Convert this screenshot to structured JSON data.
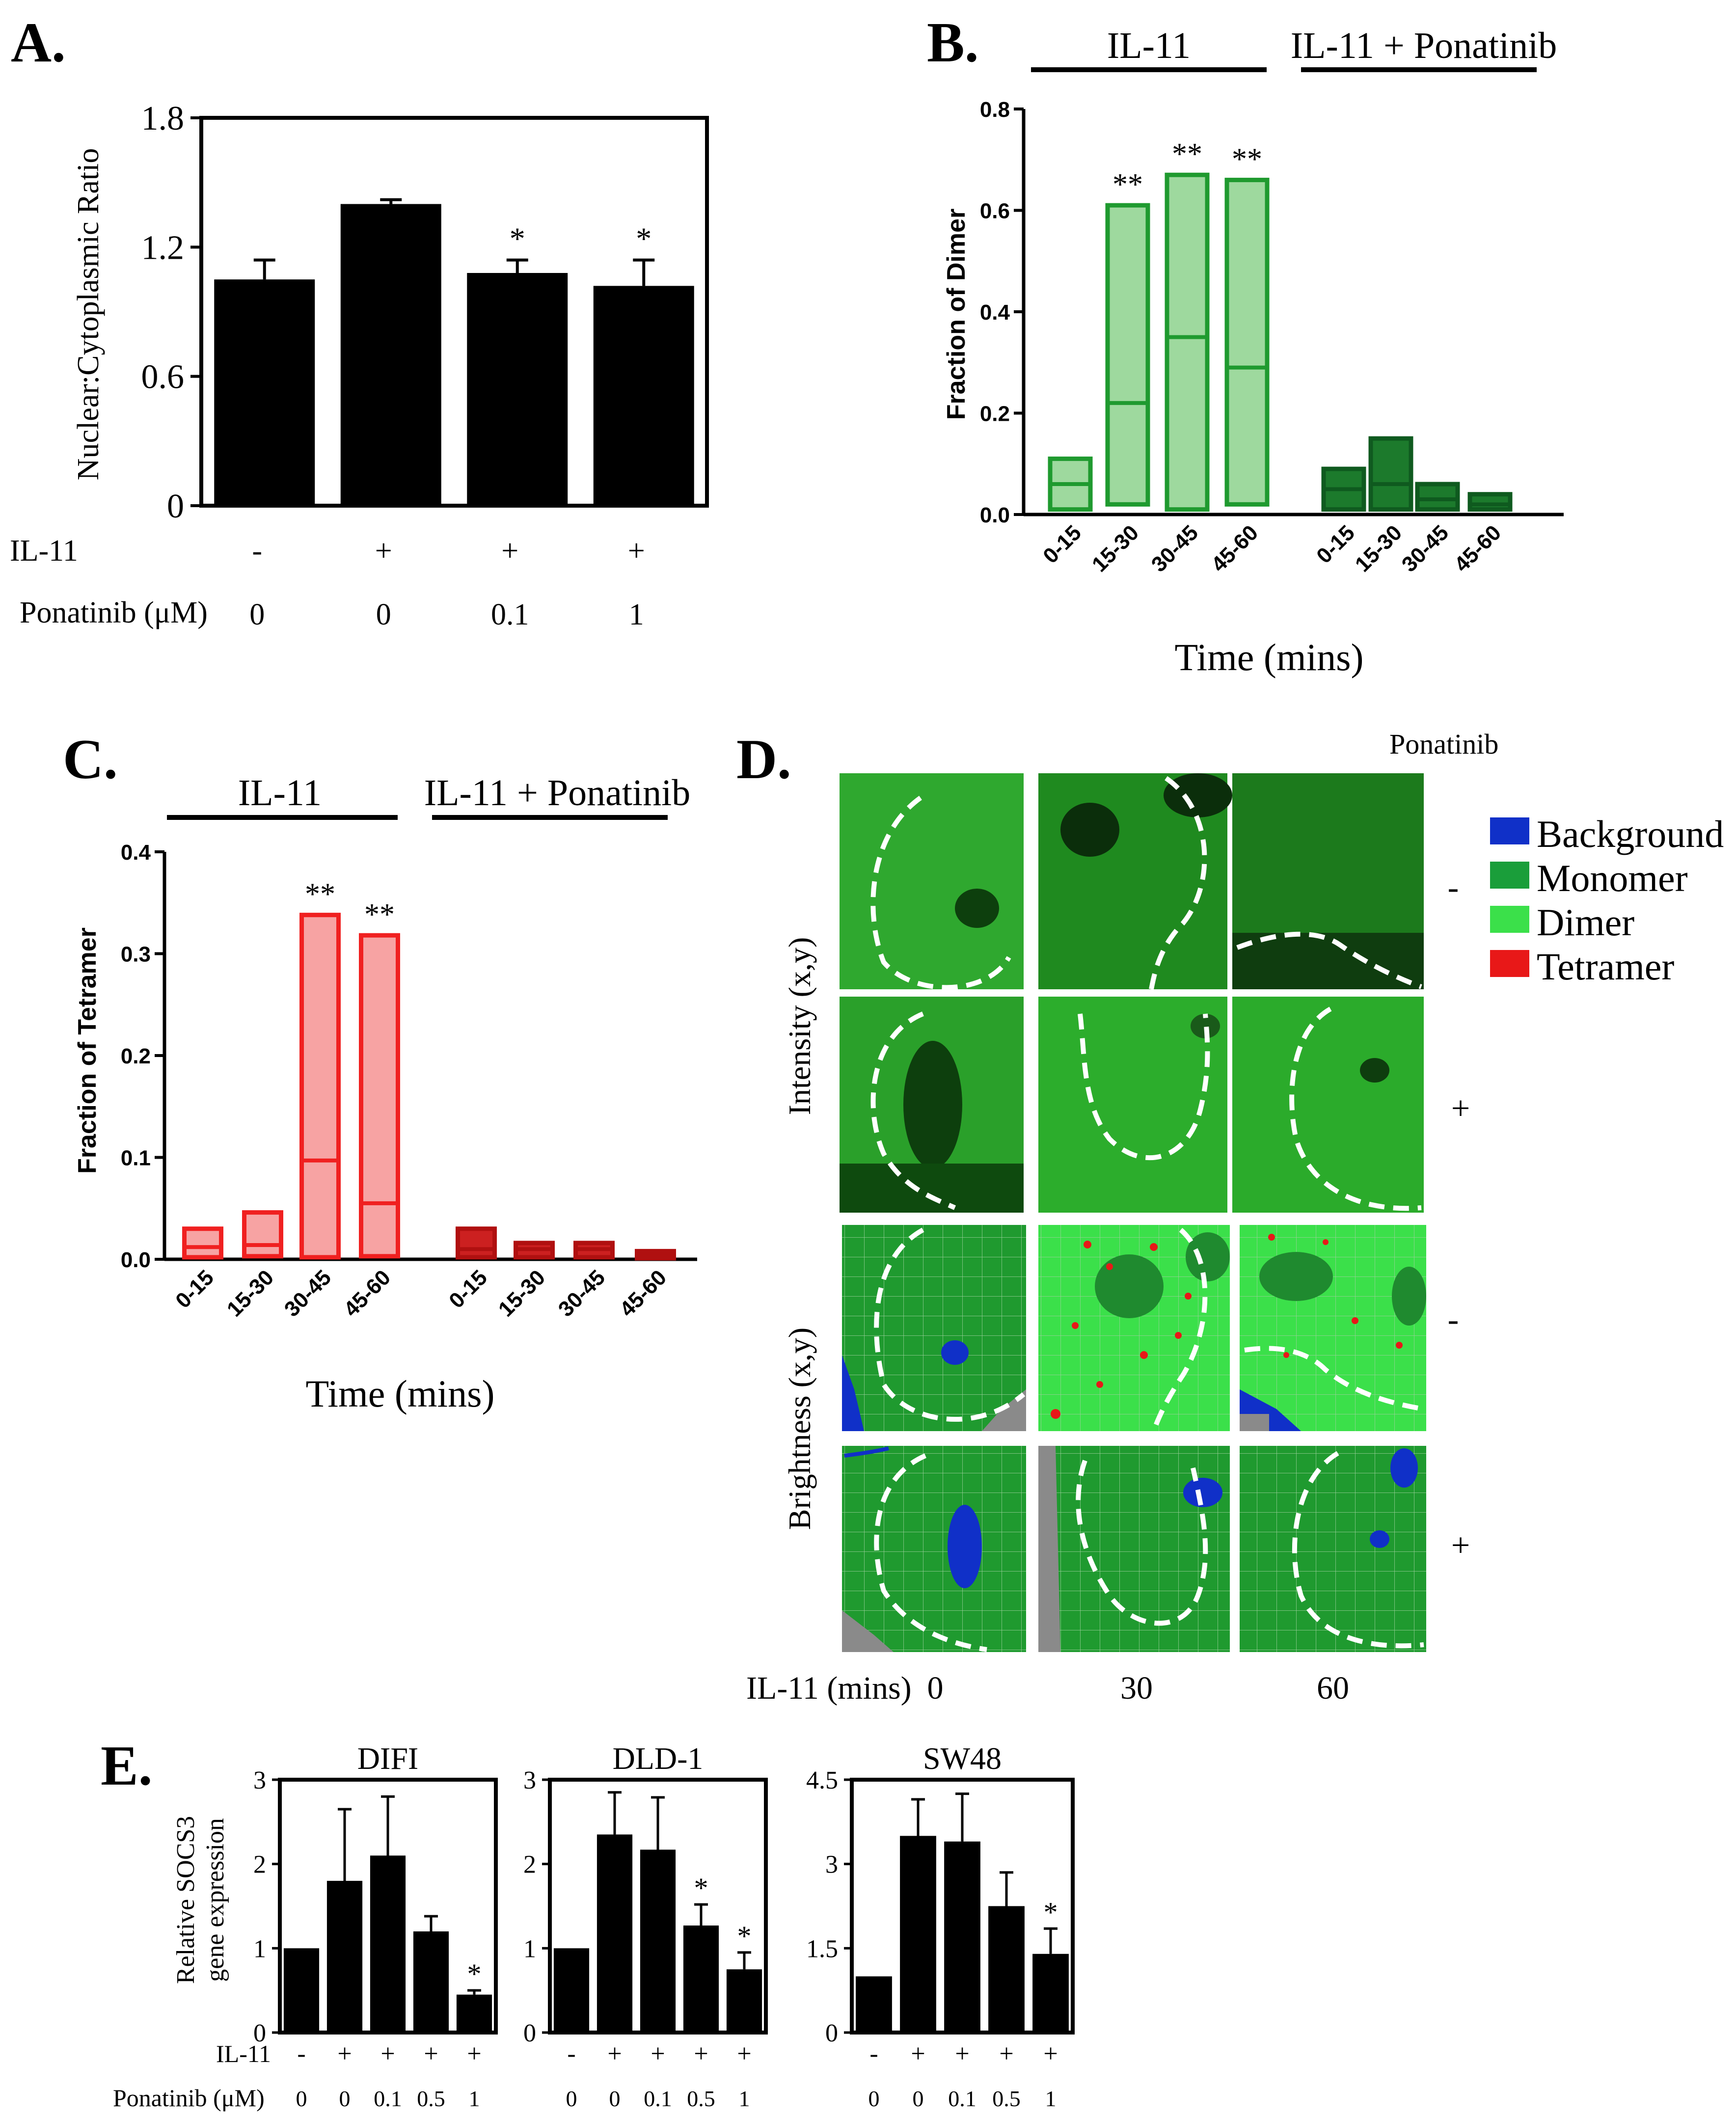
{
  "panel_a": {
    "label": "A.",
    "chart_data": {
      "type": "bar",
      "ylabel": "Nuclear:Cytoplasmic Ratio",
      "ylim": [
        0,
        1.8
      ],
      "yticks": [
        "0",
        "0.6",
        "1.2",
        "1.8"
      ],
      "values": [
        1.05,
        1.4,
        1.08,
        1.02
      ],
      "errors": [
        0.09,
        0.02,
        0.06,
        0.12
      ],
      "significance": [
        "",
        "",
        "*",
        "*"
      ],
      "row_labels": [
        "IL-11",
        "Ponatinib (μM)"
      ],
      "il11": [
        "-",
        "+",
        "+",
        "+"
      ],
      "ponatinib": [
        "0",
        "0",
        "0.1",
        "1"
      ]
    }
  },
  "panel_b": {
    "label": "B.",
    "chart_data": {
      "type": "bar",
      "ylabel": "Fraction of Dimer",
      "xlabel": "Time (mins)",
      "ylim": [
        0,
        0.8
      ],
      "yticks": [
        "0.0",
        "0.2",
        "0.4",
        "0.6",
        "0.8"
      ],
      "group_titles": [
        "IL-11",
        "IL-11 + Ponatinib"
      ],
      "categories": [
        "0-15",
        "15-30",
        "30-45",
        "45-60",
        "0-15",
        "15-30",
        "30-45",
        "45-60"
      ],
      "lows": [
        0.01,
        0.02,
        0.01,
        0.02,
        0.01,
        0.01,
        0.01,
        0.01
      ],
      "highs": [
        0.11,
        0.61,
        0.67,
        0.66,
        0.09,
        0.15,
        0.06,
        0.04
      ],
      "medians": [
        0.06,
        0.22,
        0.35,
        0.29,
        0.05,
        0.06,
        0.03,
        0.02
      ],
      "significance": [
        "",
        "**",
        "**",
        "**",
        "",
        "",
        "",
        ""
      ]
    }
  },
  "panel_c": {
    "label": "C.",
    "chart_data": {
      "type": "bar",
      "ylabel": "Fraction of Tetramer",
      "xlabel": "Time (mins)",
      "ylim": [
        0,
        0.4
      ],
      "yticks": [
        "0.0",
        "0.1",
        "0.2",
        "0.3",
        "0.4"
      ],
      "group_titles": [
        "IL-11",
        "IL-11 + Ponatinib"
      ],
      "categories": [
        "0-15",
        "15-30",
        "30-45",
        "45-60",
        "0-15",
        "15-30",
        "30-45",
        "45-60"
      ],
      "lows": [
        0.002,
        0.003,
        0.002,
        0.003,
        0.002,
        0.002,
        0.002,
        0.001
      ],
      "highs": [
        0.03,
        0.046,
        0.338,
        0.318,
        0.03,
        0.016,
        0.016,
        0.008
      ],
      "medians": [
        0.012,
        0.014,
        0.097,
        0.055,
        0.01,
        0.01,
        0.01,
        0.005
      ],
      "significance": [
        "",
        "",
        "**",
        "**",
        "",
        "",
        "",
        ""
      ]
    }
  },
  "panel_d": {
    "label": "D.",
    "col_header": "Ponatinib",
    "row_labels": [
      "Intensity (x,y)",
      "Brightness (x,y)"
    ],
    "signs": [
      "-",
      "+",
      "-",
      "+"
    ],
    "xlabel_prefix": "IL-11 (mins)",
    "timepoints": [
      "0",
      "30",
      "60"
    ],
    "legend": [
      {
        "label": "Background",
        "color": "#1030c8"
      },
      {
        "label": "Monomer",
        "color": "#1a9e3a"
      },
      {
        "label": "Dimer",
        "color": "#3be04a"
      },
      {
        "label": "Tetramer",
        "color": "#e81818"
      }
    ]
  },
  "panel_e": {
    "label": "E.",
    "ylabel_line1": "Relative SOCS3",
    "ylabel_line2": "gene expression",
    "row_labels": [
      "IL-11",
      "Ponatinib (μM)"
    ],
    "il11": [
      "-",
      "+",
      "+",
      "+",
      "+"
    ],
    "ponatinib": [
      "0",
      "0",
      "0.1",
      "0.5",
      "1"
    ],
    "chart_data": [
      {
        "type": "bar",
        "title": "DIFI",
        "ylim": [
          0,
          3
        ],
        "yticks": [
          "0",
          "1",
          "2",
          "3"
        ],
        "values": [
          1.0,
          1.8,
          2.1,
          1.2,
          0.45
        ],
        "errors": [
          0,
          0.85,
          0.7,
          0.18,
          0.05
        ],
        "significance": [
          "",
          "",
          "",
          "",
          "*"
        ]
      },
      {
        "type": "bar",
        "title": "DLD-1",
        "ylim": [
          0,
          3
        ],
        "yticks": [
          "0",
          "1",
          "2",
          "3"
        ],
        "values": [
          1.0,
          2.35,
          2.17,
          1.27,
          0.75
        ],
        "errors": [
          0,
          0.5,
          0.62,
          0.25,
          0.2
        ],
        "significance": [
          "",
          "",
          "",
          "*",
          "*"
        ]
      },
      {
        "type": "bar",
        "title": "SW48",
        "ylim": [
          0,
          4.5
        ],
        "yticks": [
          "0",
          "1.5",
          "3",
          "4.5"
        ],
        "values": [
          1.0,
          3.5,
          3.4,
          2.25,
          1.4
        ],
        "errors": [
          0,
          0.65,
          0.85,
          0.6,
          0.45
        ],
        "significance": [
          "",
          "",
          "",
          "",
          "*"
        ]
      }
    ]
  }
}
